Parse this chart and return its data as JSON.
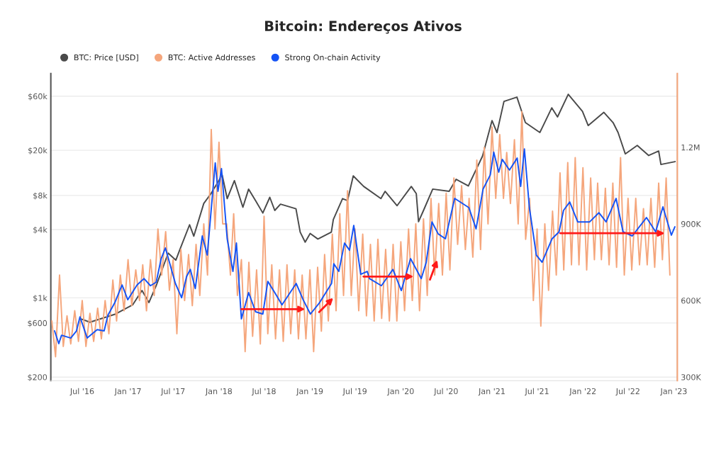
{
  "chart_data": {
    "type": "line",
    "title": "Bitcoin: Endereços Ativos",
    "log": "y",
    "grid": "y",
    "legend": "top left",
    "xlim": [
      "2016-02-26",
      "2023-01-15"
    ],
    "xticks": [
      {
        "value": "2016-07-01",
        "label": "Jul '16"
      },
      {
        "value": "2017-01-01",
        "label": "Jan '17"
      },
      {
        "value": "2017-07-01",
        "label": "Jul '17"
      },
      {
        "value": "2018-01-01",
        "label": "Jan '18"
      },
      {
        "value": "2018-07-01",
        "label": "Jul '18"
      },
      {
        "value": "2019-01-01",
        "label": "Jan '19"
      },
      {
        "value": "2019-07-01",
        "label": "Jul '19"
      },
      {
        "value": "2020-01-01",
        "label": "Jan '20"
      },
      {
        "value": "2020-07-01",
        "label": "Jul '20"
      },
      {
        "value": "2021-01-01",
        "label": "Jan '21"
      },
      {
        "value": "2021-07-01",
        "label": "Jul '21"
      },
      {
        "value": "2022-01-01",
        "label": "Jan '22"
      },
      {
        "value": "2022-07-01",
        "label": "Jul '22"
      },
      {
        "value": "2023-01-01",
        "label": "Jan '23"
      }
    ],
    "ylim": [
      186,
      95000
    ],
    "yticks": [
      {
        "value": 200,
        "label": "$200"
      },
      {
        "value": 600,
        "label": "$600"
      },
      {
        "value": 1000,
        "label": "$1k"
      },
      {
        "value": 4000,
        "label": "$4k"
      },
      {
        "value": 8000,
        "label": "$8k"
      },
      {
        "value": 20000,
        "label": "$20k"
      },
      {
        "value": 60000,
        "label": "$60k"
      }
    ],
    "y2lim": [
      286000,
      1489000
    ],
    "y2ticks": [
      {
        "value": 300000,
        "label": "300K"
      },
      {
        "value": 600000,
        "label": "600K"
      },
      {
        "value": 900000,
        "label": "900K"
      },
      {
        "value": 1200000,
        "label": "1.2M"
      }
    ],
    "x": [
      "2016-03-01",
      "2016-03-16",
      "2016-04-01",
      "2016-04-16",
      "2016-05-01",
      "2016-05-16",
      "2016-06-01",
      "2016-06-16",
      "2016-07-01",
      "2016-07-16",
      "2016-08-01",
      "2016-08-16",
      "2016-09-01",
      "2016-09-16",
      "2016-10-01",
      "2016-10-16",
      "2016-11-01",
      "2016-11-16",
      "2016-12-01",
      "2016-12-16",
      "2017-01-01",
      "2017-01-16",
      "2017-02-01",
      "2017-02-16",
      "2017-03-01",
      "2017-03-16",
      "2017-04-01",
      "2017-04-16",
      "2017-05-01",
      "2017-05-16",
      "2017-06-01",
      "2017-06-16",
      "2017-07-01",
      "2017-07-16",
      "2017-08-01",
      "2017-08-16",
      "2017-09-01",
      "2017-09-16",
      "2017-10-01",
      "2017-10-16",
      "2017-11-01",
      "2017-11-16",
      "2017-12-01",
      "2017-12-16",
      "2018-01-01",
      "2018-01-16",
      "2018-02-01",
      "2018-02-16",
      "2018-03-01",
      "2018-03-16",
      "2018-04-01",
      "2018-04-16",
      "2018-05-01",
      "2018-05-16",
      "2018-06-01",
      "2018-06-16",
      "2018-07-01",
      "2018-07-16",
      "2018-08-01",
      "2018-08-16",
      "2018-09-01",
      "2018-09-16",
      "2018-10-01",
      "2018-10-16",
      "2018-11-01",
      "2018-11-16",
      "2018-12-01",
      "2018-12-16",
      "2019-01-01",
      "2019-01-16",
      "2019-02-01",
      "2019-02-16",
      "2019-03-01",
      "2019-03-16",
      "2019-04-01",
      "2019-04-16",
      "2019-05-01",
      "2019-05-16",
      "2019-06-01",
      "2019-06-16",
      "2019-07-01",
      "2019-07-16",
      "2019-08-01",
      "2019-08-16",
      "2019-09-01",
      "2019-09-16",
      "2019-10-01",
      "2019-10-16",
      "2019-11-01",
      "2019-11-16",
      "2019-12-01",
      "2019-12-16",
      "2020-01-01",
      "2020-01-16",
      "2020-02-01",
      "2020-02-16",
      "2020-03-01",
      "2020-03-16",
      "2020-04-01",
      "2020-04-16",
      "2020-05-01",
      "2020-05-16",
      "2020-06-01",
      "2020-06-16",
      "2020-07-01",
      "2020-07-16",
      "2020-08-01",
      "2020-08-16",
      "2020-09-01",
      "2020-09-16",
      "2020-10-01",
      "2020-10-16",
      "2020-11-01",
      "2020-11-16",
      "2020-12-01",
      "2020-12-16",
      "2021-01-01",
      "2021-01-16",
      "2021-02-01",
      "2021-02-16",
      "2021-03-01",
      "2021-03-16",
      "2021-04-01",
      "2021-04-16",
      "2021-05-01",
      "2021-05-16",
      "2021-06-01",
      "2021-06-16",
      "2021-07-01",
      "2021-07-16",
      "2021-08-01",
      "2021-08-16",
      "2021-09-01",
      "2021-09-16",
      "2021-10-01",
      "2021-10-16",
      "2021-11-01",
      "2021-11-16",
      "2021-12-01",
      "2021-12-16",
      "2022-01-01",
      "2022-01-16",
      "2022-02-01",
      "2022-02-16",
      "2022-03-01",
      "2022-03-16",
      "2022-04-01",
      "2022-04-16",
      "2022-05-01",
      "2022-05-16",
      "2022-06-01",
      "2022-06-16",
      "2022-07-01",
      "2022-07-16",
      "2022-08-01",
      "2022-08-16",
      "2022-09-01",
      "2022-09-16",
      "2022-10-01",
      "2022-10-16",
      "2022-11-01",
      "2022-11-16",
      "2022-12-01",
      "2022-12-16"
    ],
    "series": [
      {
        "name": "BTC: Price [USD]",
        "color": "#4a4a4a",
        "x": [
          "2016-06-28",
          "2016-08-01",
          "2016-11-12",
          "2017-01-20",
          "2017-02-26",
          "2017-03-26",
          "2017-04-24",
          "2017-06-11",
          "2017-07-12",
          "2017-07-27",
          "2017-09-05",
          "2017-09-22",
          "2017-11-01",
          "2017-11-30",
          "2018-01-14",
          "2018-02-03",
          "2018-03-04",
          "2018-04-07",
          "2018-04-30",
          "2018-05-28",
          "2018-06-26",
          "2018-07-24",
          "2018-08-13",
          "2018-09-05",
          "2018-11-06",
          "2018-11-23",
          "2018-12-13",
          "2019-01-02",
          "2019-02-02",
          "2019-03-28",
          "2019-04-05",
          "2019-05-12",
          "2019-06-01",
          "2019-06-24",
          "2019-08-05",
          "2019-10-13",
          "2019-10-30",
          "2019-12-17",
          "2020-02-12",
          "2020-03-03",
          "2020-03-12",
          "2020-04-01",
          "2020-05-08",
          "2020-07-13",
          "2020-08-10",
          "2020-09-28",
          "2020-11-24",
          "2021-01-01",
          "2021-01-21",
          "2021-02-18",
          "2021-04-11",
          "2021-05-15",
          "2021-07-12",
          "2021-08-29",
          "2021-09-21",
          "2021-11-03",
          "2021-12-30",
          "2022-01-22",
          "2022-03-26",
          "2022-05-02",
          "2022-05-22",
          "2022-06-20",
          "2022-08-07",
          "2022-09-22",
          "2022-11-01",
          "2022-11-10",
          "2023-01-06"
        ],
        "values": [
          650,
          610,
          720,
          870,
          1160,
          910,
          1280,
          2480,
          2150,
          2630,
          4410,
          3500,
          6800,
          8300,
          12100,
          7500,
          10800,
          6300,
          9100,
          7200,
          5600,
          7700,
          5900,
          6700,
          6100,
          3800,
          3100,
          3700,
          3300,
          3800,
          4900,
          7500,
          7200,
          11900,
          9600,
          7500,
          8700,
          6500,
          9600,
          8300,
          4700,
          5900,
          9100,
          8700,
          11100,
          9700,
          17800,
          36600,
          28700,
          54000,
          58900,
          35100,
          28700,
          47400,
          39400,
          62400,
          44200,
          33100,
          43200,
          35100,
          28700,
          18600,
          22100,
          18000,
          19700,
          15000,
          15900
        ]
      },
      {
        "name": "BTC: Active Addresses",
        "axis": "y2",
        "color": "#f5a67c",
        "values": [
          520000,
          380000,
          700000,
          420000,
          540000,
          430000,
          560000,
          440000,
          600000,
          420000,
          550000,
          440000,
          570000,
          450000,
          600000,
          470000,
          680000,
          520000,
          700000,
          560000,
          760000,
          580000,
          720000,
          600000,
          740000,
          560000,
          760000,
          620000,
          880000,
          700000,
          870000,
          640000,
          760000,
          470000,
          800000,
          600000,
          780000,
          580000,
          820000,
          620000,
          900000,
          700000,
          1270000,
          880000,
          1220000,
          900000,
          900000,
          700000,
          940000,
          620000,
          760000,
          400000,
          750000,
          460000,
          720000,
          430000,
          930000,
          470000,
          740000,
          450000,
          720000,
          440000,
          740000,
          470000,
          720000,
          450000,
          700000,
          450000,
          720000,
          400000,
          730000,
          480000,
          780000,
          520000,
          860000,
          560000,
          940000,
          620000,
          1030000,
          620000,
          880000,
          560000,
          860000,
          540000,
          820000,
          520000,
          840000,
          530000,
          800000,
          520000,
          820000,
          520000,
          830000,
          560000,
          880000,
          600000,
          900000,
          560000,
          920000,
          620000,
          1000000,
          700000,
          980000,
          700000,
          1020000,
          720000,
          1080000,
          820000,
          1050000,
          800000,
          1000000,
          770000,
          1150000,
          800000,
          1200000,
          900000,
          1280000,
          1000000,
          1250000,
          1000000,
          1180000,
          980000,
          1230000,
          900000,
          1340000,
          840000,
          1000000,
          600000,
          880000,
          500000,
          900000,
          640000,
          950000,
          700000,
          1100000,
          720000,
          1140000,
          740000,
          1160000,
          740000,
          1120000,
          720000,
          1080000,
          760000,
          1060000,
          760000,
          1040000,
          740000,
          1060000,
          730000,
          1160000,
          700000,
          1000000,
          720000,
          1000000,
          740000,
          960000,
          740000,
          1000000,
          730000,
          1060000,
          760000,
          1080000,
          700000
        ]
      },
      {
        "name": "Strong On-chain Activity",
        "axis": "y2",
        "color": "#1553f5",
        "x": [
          "2016-03-12",
          "2016-03-29",
          "2016-04-09",
          "2016-05-16",
          "2016-06-08",
          "2016-06-22",
          "2016-07-21",
          "2016-08-30",
          "2016-09-27",
          "2016-10-12",
          "2016-11-09",
          "2016-12-08",
          "2016-12-31",
          "2017-02-06",
          "2017-03-06",
          "2017-04-01",
          "2017-04-24",
          "2017-05-14",
          "2017-05-31",
          "2017-07-10",
          "2017-08-04",
          "2017-08-24",
          "2017-09-08",
          "2017-09-28",
          "2017-10-26",
          "2017-11-15",
          "2017-12-17",
          "2017-12-28",
          "2018-01-11",
          "2018-02-03",
          "2018-02-26",
          "2018-03-12",
          "2018-04-01",
          "2018-04-30",
          "2018-05-28",
          "2018-06-26",
          "2018-07-16",
          "2018-08-13",
          "2018-09-11",
          "2018-11-07",
          "2018-12-05",
          "2019-01-03",
          "2019-02-09",
          "2019-03-29",
          "2019-04-07",
          "2019-04-27",
          "2019-05-20",
          "2019-06-09",
          "2019-06-26",
          "2019-07-24",
          "2019-08-19",
          "2019-08-28",
          "2019-10-15",
          "2019-11-30",
          "2020-01-03",
          "2020-02-09",
          "2020-03-23",
          "2020-04-12",
          "2020-05-05",
          "2020-05-30",
          "2020-06-28",
          "2020-08-04",
          "2020-09-30",
          "2020-10-29",
          "2020-11-26",
          "2020-12-25",
          "2021-01-08",
          "2021-01-28",
          "2021-02-11",
          "2021-03-12",
          "2021-04-12",
          "2021-04-26",
          "2021-05-11",
          "2021-05-31",
          "2021-06-28",
          "2021-07-21",
          "2021-08-30",
          "2021-09-27",
          "2021-10-15",
          "2021-11-09",
          "2021-12-11",
          "2022-01-28",
          "2022-03-06",
          "2022-04-04",
          "2022-05-14",
          "2022-06-11",
          "2022-07-18",
          "2022-09-13",
          "2022-10-20",
          "2022-11-18",
          "2022-12-22",
          "2023-01-05"
        ],
        "values": [
          481000,
          431000,
          464000,
          453000,
          481000,
          536000,
          453000,
          486000,
          481000,
          542000,
          592000,
          661000,
          603000,
          661000,
          686000,
          658000,
          672000,
          764000,
          806000,
          667000,
          611000,
          694000,
          722000,
          647000,
          853000,
          778000,
          1139000,
          1028000,
          1117000,
          842000,
          714000,
          825000,
          528000,
          631000,
          556000,
          547000,
          675000,
          631000,
          583000,
          667000,
          603000,
          547000,
          592000,
          667000,
          744000,
          714000,
          825000,
          797000,
          894000,
          703000,
          714000,
          686000,
          658000,
          722000,
          639000,
          764000,
          686000,
          750000,
          908000,
          861000,
          842000,
          1000000,
          964000,
          881000,
          1036000,
          1092000,
          1181000,
          1103000,
          1153000,
          1111000,
          1158000,
          1047000,
          1194000,
          964000,
          778000,
          750000,
          842000,
          869000,
          953000,
          986000,
          908000,
          908000,
          944000,
          908000,
          1000000,
          869000,
          853000,
          925000,
          869000,
          967000,
          856000,
          889000
        ]
      }
    ]
  }
}
